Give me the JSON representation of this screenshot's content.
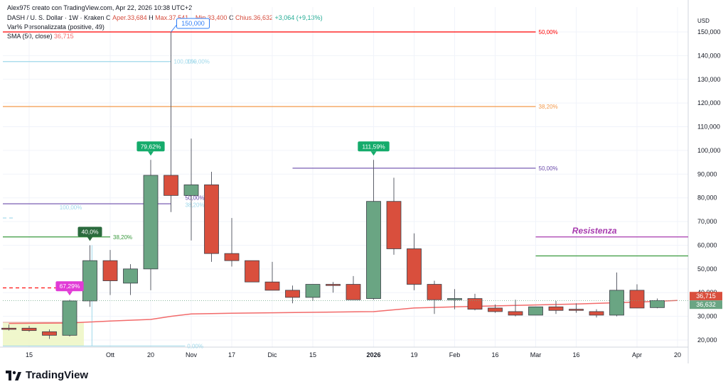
{
  "header": {
    "author_line": "Alex975 creato con TradingView.com, Apr 22, 2026 10:38 UTC+2",
    "symbol": "DASH / U. S. Dollar · 1W · Kraken",
    "ohlc": {
      "open_label": "O",
      "open": "Aper.33,684",
      "high_label": "H",
      "high": "Max.37,541",
      "low_label": "L",
      "low": "Min.33,400",
      "close_label": "C",
      "close": "Chius.36,632",
      "change": "+3,064 (+9,13%)"
    },
    "indicator1": "Var% Personalizzata (positive, 49)",
    "indicator2_name": "SMA (50, close)",
    "indicator2_value": "36,715"
  },
  "branding": {
    "logo_text": "TradingView",
    "logo_icon": "tradingview-logo-icon"
  },
  "colors": {
    "bull": "#6aa583",
    "bear": "#d94f3d",
    "sma": "#f26a6a",
    "orange": "#f39a4c",
    "purple": "#6b4bab",
    "green_line": "#3a9a3e",
    "resist": "#a73aae",
    "light_blue": "#9fd8ea",
    "blue_label": "#2f7df6",
    "label_green": "#15ab6b",
    "label_darkgreen": "#2a6a3d",
    "label_magenta": "#e13bd6"
  },
  "chart_data": {
    "type": "candlestick",
    "currency": "USD",
    "ylim": [
      15000,
      160000
    ],
    "y_ticks": [
      20000,
      30000,
      40000,
      50000,
      60000,
      70000,
      80000,
      90000,
      100000,
      110000,
      120000,
      130000,
      140000,
      150000
    ],
    "y_tick_labels": [
      "20,000",
      "30,000",
      "40,000",
      "50,000",
      "60,000",
      "70,000",
      "80,000",
      "90,000",
      "100,000",
      "110,000",
      "120,000",
      "130,000",
      "140,000",
      "150,000"
    ],
    "x_tick_labels": [
      {
        "i": 1,
        "label": "15",
        "bold": false
      },
      {
        "i": 5,
        "label": "Ott",
        "bold": false
      },
      {
        "i": 7,
        "label": "20",
        "bold": false
      },
      {
        "i": 9,
        "label": "Nov",
        "bold": false
      },
      {
        "i": 11,
        "label": "17",
        "bold": false
      },
      {
        "i": 13,
        "label": "Dic",
        "bold": false
      },
      {
        "i": 15,
        "label": "15",
        "bold": false
      },
      {
        "i": 18,
        "label": "2026",
        "bold": true
      },
      {
        "i": 20,
        "label": "19",
        "bold": false
      },
      {
        "i": 22,
        "label": "Feb",
        "bold": false
      },
      {
        "i": 24,
        "label": "16",
        "bold": false
      },
      {
        "i": 26,
        "label": "Mar",
        "bold": false
      },
      {
        "i": 28,
        "label": "16",
        "bold": false
      },
      {
        "i": 31,
        "label": "Apr",
        "bold": false
      },
      {
        "i": 33,
        "label": "20",
        "bold": false
      }
    ],
    "candles": [
      {
        "o": 25000,
        "h": 26500,
        "l": 24000,
        "c": 24500
      },
      {
        "o": 25000,
        "h": 26000,
        "l": 23500,
        "c": 24000
      },
      {
        "o": 23500,
        "h": 24500,
        "l": 20500,
        "c": 22000
      },
      {
        "o": 22000,
        "h": 37000,
        "l": 21500,
        "c": 36500
      },
      {
        "o": 36500,
        "h": 60000,
        "l": 34000,
        "c": 53500
      },
      {
        "o": 53500,
        "h": 58000,
        "l": 39000,
        "c": 45000
      },
      {
        "o": 44000,
        "h": 52000,
        "l": 39000,
        "c": 50000
      },
      {
        "o": 50000,
        "h": 96000,
        "l": 41000,
        "c": 89500
      },
      {
        "o": 89500,
        "h": 150000,
        "l": 74000,
        "c": 81000
      },
      {
        "o": 81000,
        "h": 105000,
        "l": 62000,
        "c": 85500
      },
      {
        "o": 85500,
        "h": 91000,
        "l": 53000,
        "c": 56500
      },
      {
        "o": 56500,
        "h": 71500,
        "l": 51000,
        "c": 53500
      },
      {
        "o": 53500,
        "h": 53500,
        "l": 45000,
        "c": 44500
      },
      {
        "o": 44500,
        "h": 53000,
        "l": 41000,
        "c": 41000
      },
      {
        "o": 41000,
        "h": 43000,
        "l": 35500,
        "c": 38000
      },
      {
        "o": 38000,
        "h": 43000,
        "l": 36500,
        "c": 43500
      },
      {
        "o": 43500,
        "h": 44500,
        "l": 40000,
        "c": 43000
      },
      {
        "o": 43500,
        "h": 47000,
        "l": 37000,
        "c": 37000
      },
      {
        "o": 37500,
        "h": 96000,
        "l": 37000,
        "c": 78500
      },
      {
        "o": 78500,
        "h": 88500,
        "l": 56000,
        "c": 58500
      },
      {
        "o": 58500,
        "h": 65000,
        "l": 41000,
        "c": 43500
      },
      {
        "o": 43500,
        "h": 45000,
        "l": 31000,
        "c": 37000
      },
      {
        "o": 37000,
        "h": 41500,
        "l": 33000,
        "c": 37500
      },
      {
        "o": 37500,
        "h": 39500,
        "l": 32500,
        "c": 33000
      },
      {
        "o": 33500,
        "h": 35000,
        "l": 31500,
        "c": 32000
      },
      {
        "o": 32000,
        "h": 37000,
        "l": 30000,
        "c": 30500
      },
      {
        "o": 30500,
        "h": 34000,
        "l": 30500,
        "c": 34000
      },
      {
        "o": 34000,
        "h": 36500,
        "l": 31000,
        "c": 32500
      },
      {
        "o": 33000,
        "h": 35500,
        "l": 31500,
        "c": 32500
      },
      {
        "o": 32000,
        "h": 33000,
        "l": 29500,
        "c": 30500
      },
      {
        "o": 30500,
        "h": 48500,
        "l": 30000,
        "c": 41000
      },
      {
        "o": 41000,
        "h": 43500,
        "l": 33500,
        "c": 33500
      },
      {
        "o": 33684,
        "h": 37541,
        "l": 33400,
        "c": 36632
      }
    ],
    "sma50": [
      {
        "i": 0,
        "v": 27000
      },
      {
        "i": 3,
        "v": 27200
      },
      {
        "i": 5,
        "v": 28000
      },
      {
        "i": 7,
        "v": 28700
      },
      {
        "i": 8,
        "v": 30000
      },
      {
        "i": 9,
        "v": 31000
      },
      {
        "i": 11,
        "v": 31300
      },
      {
        "i": 13,
        "v": 31500
      },
      {
        "i": 16,
        "v": 31800
      },
      {
        "i": 18,
        "v": 32000
      },
      {
        "i": 20,
        "v": 33500
      },
      {
        "i": 22,
        "v": 34000
      },
      {
        "i": 25,
        "v": 34600
      },
      {
        "i": 28,
        "v": 35200
      },
      {
        "i": 31,
        "v": 36000
      },
      {
        "i": 33,
        "v": 36715
      }
    ],
    "annotations": {
      "lines": [
        {
          "from_i": -2,
          "to_i": 26,
          "v": 150000,
          "color": "red",
          "label": "50,00%"
        },
        {
          "from_i": -2,
          "to_i": 26,
          "v": 118500,
          "color": "orange",
          "label": "38,20%"
        },
        {
          "from_i": -2,
          "to_i": 8,
          "v": 137500,
          "color": "light_blue",
          "label": "100,00%"
        },
        {
          "from_i": -2,
          "to_i": 8,
          "v": 77500,
          "color": "purple",
          "label": ""
        },
        {
          "from_i": 14,
          "to_i": 26,
          "v": 92500,
          "color": "purple",
          "label": "50,00%"
        },
        {
          "from_i": 26,
          "to_i": 35,
          "v": 63500,
          "color": "resist",
          "label": ""
        },
        {
          "from_i": 26,
          "to_i": 35,
          "v": 55500,
          "color": "green_line",
          "label": ""
        },
        {
          "from_i": -2,
          "to_i": 5,
          "v": 63500,
          "color": "green_line",
          "label": "38,20%"
        }
      ],
      "dashed": [
        {
          "from_i": -2,
          "to_i": 3,
          "v": 42000,
          "color": "red"
        },
        {
          "from_i": -2,
          "to_i": 0,
          "v": 71500,
          "color": "light_blue"
        }
      ],
      "small_labels": [
        {
          "i": 2.5,
          "v": 76000,
          "text": "100,00%",
          "color": "light_blue"
        },
        {
          "i": 8.8,
          "v": 17500,
          "text": "0,00%",
          "color": "light_blue"
        },
        {
          "i": 8.8,
          "v": 137500,
          "text": "100,00%",
          "color": "light_blue"
        },
        {
          "i": 8.7,
          "v": 80000,
          "text": "50,00%",
          "color": "purple"
        },
        {
          "i": 8.7,
          "v": 77000,
          "text": "38,20%",
          "color": "light_blue"
        }
      ],
      "resistenza_label": "Resistenza",
      "flags": [
        {
          "i": 3,
          "v": 37000,
          "text": "67,29%",
          "color": "label_magenta"
        },
        {
          "i": 4,
          "v": 60000,
          "text": "40,0%",
          "color": "label_darkgreen"
        },
        {
          "i": 7,
          "v": 96000,
          "text": "79,62%",
          "color": "label_green"
        },
        {
          "i": 18,
          "v": 96000,
          "text": "111,59%",
          "color": "label_green"
        }
      ],
      "high_callout": "150,000",
      "last_sma": "36,715",
      "last_close": "36,632"
    }
  }
}
